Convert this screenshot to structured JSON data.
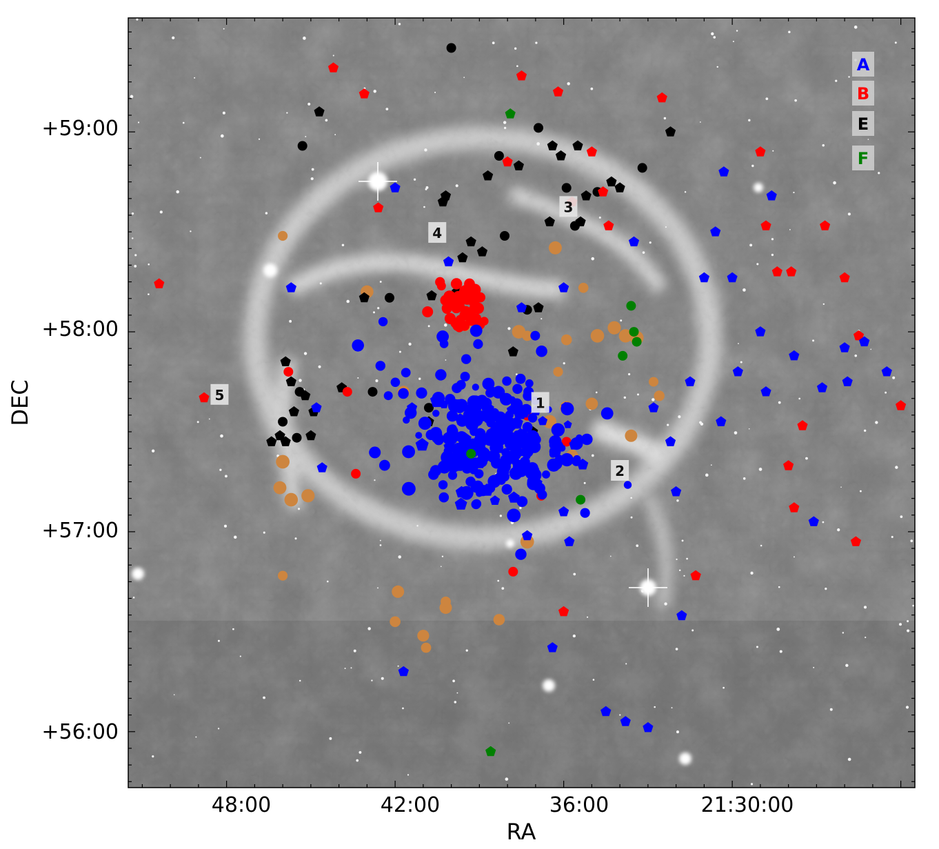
{
  "chart_data": {
    "type": "scatter",
    "xlabel": "RA",
    "ylabel": "DEC",
    "x_axis": {
      "direction": "decreasing to the right (RA)",
      "range_min": "21:51:30",
      "range_max": "21:23:30",
      "ticks": [
        "48:00",
        "42:00",
        "36:00",
        "21:30:00"
      ]
    },
    "y_axis": {
      "range_deg": [
        55.72,
        59.57
      ],
      "ticks": [
        "+56:00",
        "+57:00",
        "+58:00",
        "+59:00"
      ]
    },
    "background": "grayscale infrared sky image with bright nebular ring and stars",
    "legend_placement": "top-right",
    "legend": [
      {
        "label": "A",
        "color": "#0000ff"
      },
      {
        "label": "B",
        "color": "#ff0000"
      },
      {
        "label": "E",
        "color": "#000000"
      },
      {
        "label": "F",
        "color": "#008000"
      }
    ],
    "extra_color": {
      "name": "unlabeled (orange-tan)",
      "color": "#cd853f"
    },
    "marker_shapes": [
      "pentagon",
      "circle"
    ],
    "region_labels": [
      {
        "text": "1",
        "ra": "21:36:50",
        "dec": 57.64
      },
      {
        "text": "2",
        "ra": "21:34:00",
        "dec": 57.3
      },
      {
        "text": "3",
        "ra": "21:35:50",
        "dec": 58.62
      },
      {
        "text": "4",
        "ra": "21:40:30",
        "dec": 58.49
      },
      {
        "text": "5",
        "ra": "21:48:15",
        "dec": 57.68
      }
    ],
    "series": [
      {
        "name": "A",
        "color": "#0000ff",
        "n_points_approx": 330,
        "distribution": "dense central cluster near RA 21:38, DEC +57:30 plus scattered pentagons across the ring"
      },
      {
        "name": "B",
        "color": "#ff0000",
        "n_points_approx": 95,
        "distribution": "clump near RA 21:40, DEC +58:10 (region 4) and scattered points"
      },
      {
        "name": "E",
        "color": "#000000",
        "n_points_approx": 90,
        "distribution": "northern arc near region 3/4 and column near region 5"
      },
      {
        "name": "F",
        "color": "#008000",
        "n_points_approx": 8,
        "distribution": "few points near RA 21:33:30, DEC +57:55"
      }
    ]
  },
  "labels": {
    "xlabel": "RA",
    "ylabel": "DEC",
    "xticks": [
      "48:00",
      "42:00",
      "36:00",
      "21:30:00"
    ],
    "yticks": [
      "+59:00",
      "+58:00",
      "+57:00",
      "+56:00"
    ],
    "legend": [
      "A",
      "B",
      "E",
      "F"
    ],
    "regions": [
      "1",
      "2",
      "3",
      "4",
      "5"
    ]
  }
}
